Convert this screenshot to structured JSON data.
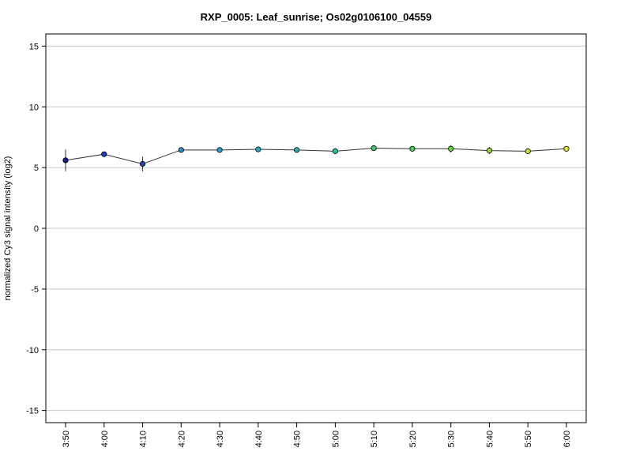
{
  "chart_data": {
    "type": "line",
    "title": "RXP_0005: Leaf_sunrise; Os02g0106100_04559",
    "xlabel": "",
    "ylabel": "normalized Cy3 signal intensity (log2)",
    "ylim": [
      -16,
      16
    ],
    "yticks": [
      -15,
      -10,
      -5,
      0,
      5,
      10,
      15
    ],
    "grid": true,
    "categories": [
      "3:50",
      "4:00",
      "4:10",
      "4:20",
      "4:30",
      "4:40",
      "4:50",
      "5:00",
      "5:10",
      "5:20",
      "5:30",
      "5:40",
      "5:50",
      "6:00"
    ],
    "series": [
      {
        "values": [
          5.6,
          6.1,
          5.3,
          6.45,
          6.45,
          6.5,
          6.45,
          6.35,
          6.6,
          6.55,
          6.55,
          6.4,
          6.35,
          6.55
        ],
        "error": [
          0.9,
          0.15,
          0.6,
          0.1,
          0.05,
          0.05,
          0.1,
          0.1,
          0.05,
          0.05,
          0.3,
          0.3,
          0.2,
          0.1
        ],
        "point_colors": [
          "#1a1a8c",
          "#1f3fbf",
          "#2447a8",
          "#2a8fc9",
          "#2b9fd0",
          "#2aa8c8",
          "#2ab3b0",
          "#2bbfa0",
          "#38c878",
          "#4ccf50",
          "#6bd43a",
          "#9ad835",
          "#c8dc33",
          "#e3e33a"
        ]
      }
    ]
  }
}
